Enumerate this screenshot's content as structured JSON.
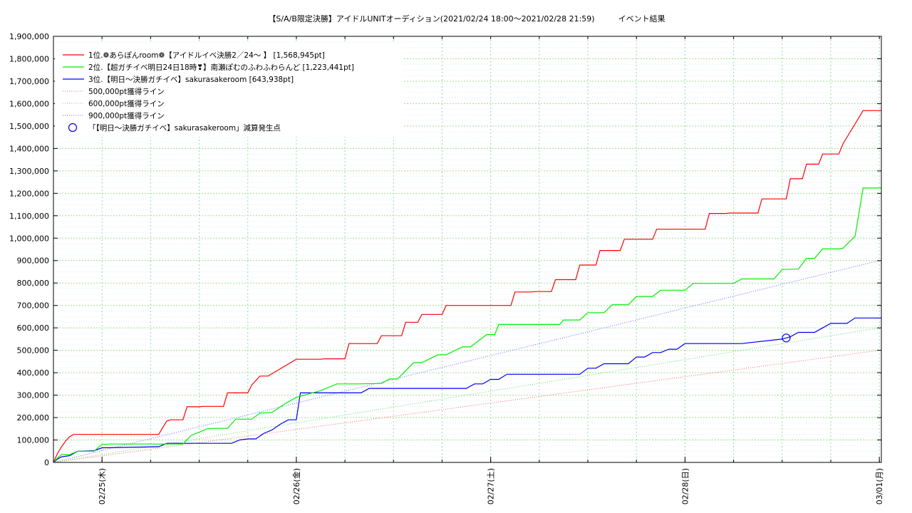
{
  "chart_data": {
    "type": "line",
    "title": "【S/A/B限定決勝】アイドルUNITオーディション(2021/02/24 18:00～2021/02/28 21:59)　　　イベント結果",
    "xlabel": "",
    "ylabel": "",
    "x_range": [
      "2021-02-24 18:00",
      "2021-03-01 00:15"
    ],
    "ylim": [
      0,
      1900000
    ],
    "y_ticks": [
      "0",
      "100,000",
      "200,000",
      "300,000",
      "400,000",
      "500,000",
      "600,000",
      "700,000",
      "800,000",
      "900,000",
      "1,000,000",
      "1,100,000",
      "1,200,000",
      "1,300,000",
      "1,400,000",
      "1,500,000",
      "1,600,000",
      "1,700,000",
      "1,800,000",
      "1,900,000"
    ],
    "x_ticks": [
      {
        "x": "2021-02-25 00:00",
        "label": "02/25(木)"
      },
      {
        "x": "2021-02-26 00:00",
        "label": "02/26(金)"
      },
      {
        "x": "2021-02-27 00:00",
        "label": "02/27(土)"
      },
      {
        "x": "2021-02-28 00:00",
        "label": "02/28(日)"
      },
      {
        "x": "2021-03-01 00:00",
        "label": "03/01(月)"
      }
    ],
    "grid": true,
    "legend_position": "top-left",
    "series": [
      {
        "name": "1位.❁あらぽんroom❁【アイドルイベ決勝2／24～ 】 [1,568,945pt]",
        "color": "#ff0000",
        "style": "solid",
        "x": [
          "2021-02-24 18:00",
          "2021-02-24 18:30",
          "2021-02-24 19:00",
          "2021-02-24 19:30",
          "2021-02-24 20:00",
          "2021-02-24 20:30",
          "2021-02-25 07:00",
          "2021-02-25 07:30",
          "2021-02-25 08:00",
          "2021-02-25 08:30",
          "2021-02-25 10:00",
          "2021-02-25 10:30",
          "2021-02-25 12:00",
          "2021-02-25 12:30",
          "2021-02-25 15:00",
          "2021-02-25 15:30",
          "2021-02-25 18:00",
          "2021-02-25 18:30",
          "2021-02-25 19:30",
          "2021-02-25 20:30",
          "2021-02-26 00:00",
          "2021-02-26 03:00",
          "2021-02-26 03:30",
          "2021-02-26 06:00",
          "2021-02-26 06:30",
          "2021-02-26 10:00",
          "2021-02-26 10:30",
          "2021-02-26 13:00",
          "2021-02-26 13:30",
          "2021-02-26 15:00",
          "2021-02-26 15:30",
          "2021-02-26 18:00",
          "2021-02-26 18:30",
          "2021-02-27 02:30",
          "2021-02-27 03:00",
          "2021-02-27 05:00",
          "2021-02-27 05:30",
          "2021-02-27 07:30",
          "2021-02-27 08:00",
          "2021-02-27 10:30",
          "2021-02-27 11:00",
          "2021-02-27 13:00",
          "2021-02-27 13:30",
          "2021-02-27 16:00",
          "2021-02-27 16:30",
          "2021-02-27 20:00",
          "2021-02-27 20:30",
          "2021-02-28 02:30",
          "2021-02-28 03:00",
          "2021-02-28 05:00",
          "2021-02-28 05:30",
          "2021-02-28 09:00",
          "2021-02-28 09:30",
          "2021-02-28 12:30",
          "2021-02-28 13:00",
          "2021-02-28 14:30",
          "2021-02-28 15:00",
          "2021-02-28 16:30",
          "2021-02-28 17:00",
          "2021-02-28 19:00",
          "2021-02-28 19:30",
          "2021-02-28 22:00",
          "2021-03-01 00:15"
        ],
        "y": [
          0,
          40000,
          70000,
          95000,
          115000,
          125000,
          125000,
          155000,
          185000,
          190000,
          190000,
          248000,
          248000,
          250000,
          250000,
          310000,
          310000,
          345000,
          385000,
          385000,
          460000,
          460000,
          462000,
          462000,
          530000,
          530000,
          565000,
          565000,
          625000,
          625000,
          660000,
          660000,
          700000,
          700000,
          760000,
          760000,
          762000,
          762000,
          815000,
          815000,
          880000,
          880000,
          945000,
          945000,
          995000,
          995000,
          1040000,
          1040000,
          1110000,
          1110000,
          1112000,
          1112000,
          1175000,
          1175000,
          1265000,
          1265000,
          1330000,
          1330000,
          1375000,
          1375000,
          1420000,
          1568945,
          1568945
        ]
      },
      {
        "name": "2位.【超ガチイベ明日24日18時❣】南瀬ぽむのふわふわらんど [1,223,441pt]",
        "color": "#00ee00",
        "style": "solid",
        "x": [
          "2021-02-24 18:00",
          "2021-02-24 18:30",
          "2021-02-24 19:00",
          "2021-02-24 20:00",
          "2021-02-24 21:00",
          "2021-02-24 23:00",
          "2021-02-25 00:00",
          "2021-02-25 01:00",
          "2021-02-25 10:00",
          "2021-02-25 11:00",
          "2021-02-25 13:00",
          "2021-02-25 14:00",
          "2021-02-25 15:30",
          "2021-02-25 16:30",
          "2021-02-25 18:30",
          "2021-02-25 19:30",
          "2021-02-25 21:00",
          "2021-02-25 22:30",
          "2021-02-26 00:00",
          "2021-02-26 03:00",
          "2021-02-26 05:00",
          "2021-02-26 07:30",
          "2021-02-26 10:30",
          "2021-02-26 11:30",
          "2021-02-26 12:30",
          "2021-02-26 14:30",
          "2021-02-26 15:30",
          "2021-02-26 17:30",
          "2021-02-26 18:30",
          "2021-02-26 20:30",
          "2021-02-26 21:30",
          "2021-02-26 23:30",
          "2021-02-27 00:30",
          "2021-02-27 01:00",
          "2021-02-27 08:30",
          "2021-02-27 09:00",
          "2021-02-27 11:00",
          "2021-02-27 12:00",
          "2021-02-27 14:00",
          "2021-02-27 15:00",
          "2021-02-27 17:00",
          "2021-02-27 18:00",
          "2021-02-27 20:00",
          "2021-02-27 21:00",
          "2021-02-28 00:00",
          "2021-02-28 01:00",
          "2021-02-28 06:00",
          "2021-02-28 07:00",
          "2021-02-28 11:00",
          "2021-02-28 12:00",
          "2021-02-28 14:00",
          "2021-02-28 15:00",
          "2021-02-28 16:00",
          "2021-02-28 17:00",
          "2021-02-28 19:00",
          "2021-02-28 19:30",
          "2021-02-28 21:00",
          "2021-02-28 22:00",
          "2021-03-01 00:15"
        ],
        "y": [
          0,
          20000,
          35000,
          35000,
          50000,
          50000,
          80000,
          82000,
          82000,
          120000,
          150000,
          152000,
          152000,
          193000,
          193000,
          220000,
          223000,
          260000,
          290000,
          320000,
          350000,
          350000,
          352000,
          372000,
          372000,
          445000,
          445000,
          480000,
          480000,
          515000,
          515000,
          570000,
          570000,
          615000,
          615000,
          635000,
          635000,
          668000,
          668000,
          703000,
          703000,
          740000,
          740000,
          768000,
          768000,
          798000,
          798000,
          818000,
          818000,
          860000,
          862000,
          910000,
          910000,
          952000,
          952000,
          955000,
          1008000,
          1223441,
          1223441
        ]
      },
      {
        "name": "3位.【明日～決勝ガチイベ】sakurasakeroom [643,938pt]",
        "color": "#0000ee",
        "style": "solid",
        "x": [
          "2021-02-24 18:00",
          "2021-02-24 18:30",
          "2021-02-24 19:00",
          "2021-02-24 20:00",
          "2021-02-24 21:00",
          "2021-02-24 23:00",
          "2021-02-25 00:00",
          "2021-02-25 07:00",
          "2021-02-25 08:00",
          "2021-02-25 16:00",
          "2021-02-25 17:00",
          "2021-02-25 18:00",
          "2021-02-25 19:00",
          "2021-02-25 20:00",
          "2021-02-25 21:00",
          "2021-02-25 22:00",
          "2021-02-25 23:00",
          "2021-02-26 00:00",
          "2021-02-26 00:30",
          "2021-02-26 08:00",
          "2021-02-26 09:00",
          "2021-02-26 21:00",
          "2021-02-26 22:00",
          "2021-02-26 23:00",
          "2021-02-27 00:00",
          "2021-02-27 01:00",
          "2021-02-27 02:00",
          "2021-02-27 11:00",
          "2021-02-27 12:00",
          "2021-02-27 13:00",
          "2021-02-27 14:00",
          "2021-02-27 17:00",
          "2021-02-27 18:00",
          "2021-02-27 19:00",
          "2021-02-27 20:00",
          "2021-02-27 21:00",
          "2021-02-27 22:00",
          "2021-02-27 23:00",
          "2021-02-28 00:00",
          "2021-02-28 07:00",
          "2021-02-28 12:00",
          "2021-02-28 13:00",
          "2021-02-28 14:00",
          "2021-02-28 16:00",
          "2021-02-28 17:00",
          "2021-02-28 18:00",
          "2021-02-28 19:00",
          "2021-02-28 20:00",
          "2021-02-28 21:00",
          "2021-03-01 00:15"
        ],
        "y": [
          0,
          15000,
          25000,
          30000,
          50000,
          52000,
          65000,
          70000,
          85000,
          85000,
          100000,
          105000,
          105000,
          130000,
          145000,
          170000,
          190000,
          190000,
          310000,
          310000,
          330000,
          330000,
          350000,
          350000,
          370000,
          370000,
          393000,
          393000,
          420000,
          420000,
          440000,
          440000,
          470000,
          470000,
          490000,
          490000,
          505000,
          505000,
          530000,
          530000,
          550000,
          560000,
          580000,
          580000,
          600000,
          620000,
          620000,
          620000,
          643938,
          643938
        ]
      },
      {
        "name": "500,000pt獲得ライン",
        "color": "#ff6666",
        "style": "dotted",
        "x": [
          "2021-02-24 18:00",
          "2021-03-01 00:00"
        ],
        "y": [
          0,
          500000
        ]
      },
      {
        "name": "600,000pt獲得ライン",
        "color": "#66dd66",
        "style": "dotted",
        "x": [
          "2021-02-24 18:00",
          "2021-03-01 00:00"
        ],
        "y": [
          0,
          600000
        ]
      },
      {
        "name": "900,000pt獲得ライン",
        "color": "#6666ff",
        "style": "dotted",
        "x": [
          "2021-02-24 18:00",
          "2021-03-01 00:00"
        ],
        "y": [
          0,
          900000
        ]
      }
    ],
    "markers": [
      {
        "name": "「【明日～決勝ガチイベ】sakurasakeroom」減算発生点",
        "color": "#0000ee",
        "shape": "circle",
        "x": "2021-02-28 12:30",
        "y": 555000
      }
    ]
  }
}
